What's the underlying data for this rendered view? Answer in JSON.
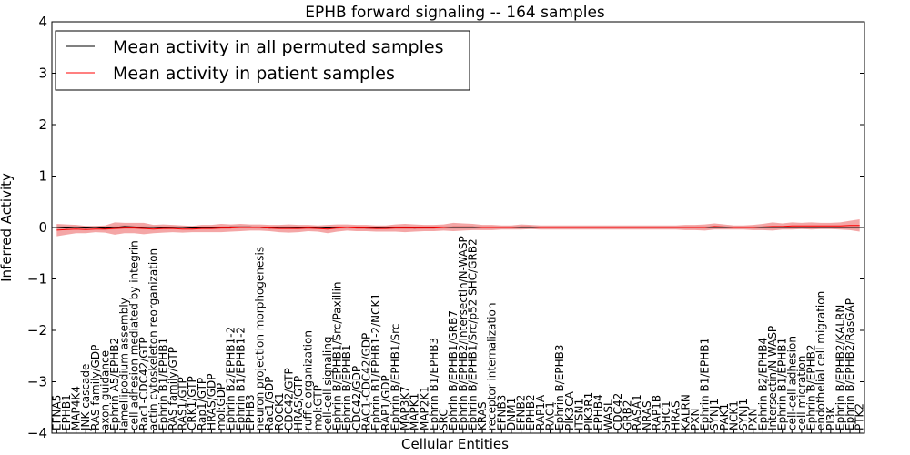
{
  "chart_data": {
    "type": "line",
    "title": "EPHB forward signaling -- 164 samples",
    "xlabel": "Cellular Entities",
    "ylabel": "Inferred Activity",
    "ylim": [
      -4,
      4
    ],
    "yticks": [
      4,
      3,
      2,
      1,
      0,
      -1,
      -2,
      -3,
      -4
    ],
    "ytick_labels": [
      "4",
      "3",
      "2",
      "1",
      "0",
      "−1",
      "−2",
      "−3",
      "−4"
    ],
    "grid": false,
    "legend_position": "top-left",
    "categories": [
      "EFNA5",
      "EPHB1",
      "MAP4K4",
      "JNK cascade",
      "RAS family/GDP",
      "axon guidance",
      "Ephrin A5/EPHB2",
      "lamellipodium assembly",
      "cell adhesion mediated by integrin",
      "Rac1-CDC42/GTP",
      "actin cytoskeleton reorganization",
      "Ephrin B1/EPHB1",
      "RAS family/GTP",
      "RAS1/GTP",
      "CRK1/GTP",
      "Rap1/GTP",
      "HRAS/GDP",
      "mol:GDP",
      "Ephrin B2/EPHB1-2",
      "Ephrin B1/EPHB1-2",
      "EPHB3",
      "neuron projection morphogenesis",
      "Rac1/GDP",
      "ROCK1",
      "CDC42/GTP",
      "HRAS/GTP",
      "ruffle organization",
      "mol:GTP",
      "cell-cell signaling",
      "Ephrin B/EPHB1/Src/Paxillin",
      "Ephrin B/EPHB1",
      "CDC42/GDP",
      "RAC1-CDC42/GDP",
      "Ephrin B1/EPHB1-2/NCK1",
      "RAP1/GDP",
      "Ephrin B/EPHB1/Src",
      "MAP3K7",
      "MAPK1",
      "MAP2K1",
      "Ephrin B1/EPHB3",
      "SRC",
      "Ephrin B/EPHB1/GRB7",
      "Ephrin B/EPHB2/Intersectin/N-WASP",
      "Ephrin B/EPHB1/Src/p52 SHC/GRB2",
      "KRAS",
      "receptor internalization",
      "EFNB3",
      "DNM1",
      "EFNB2",
      "EPHB2",
      "RAP1A",
      "RAC1",
      "Ephrin B/EPHB3",
      "PIK3CA",
      "ITSN1",
      "PIK3R1",
      "EPHB4",
      "WASL",
      "CDC42",
      "GRB2",
      "RASA1",
      "NRAS",
      "RAP1B",
      "SHC1",
      "HRAS",
      "KALRN",
      "PXN",
      "Ephrin B1/EPHB1",
      "SYNJ1",
      "PAK1",
      "NCK1",
      "SYNJ1",
      "PXN",
      "Ephrin B2/EPHB4",
      "Intersectin/N-WASP",
      "Ephrin B1/EPHB1",
      "cell-cell adhesion",
      "cell migration",
      "Ephrin B/EPHB2",
      "endothelial cell migration",
      "PI3K",
      "Ephrin B/EPHB2/KALRN",
      "Ephrin B/EPHB2/RasGAP",
      "PTK2"
    ],
    "series": [
      {
        "name": "Mean activity in all permuted samples",
        "color": "#000000",
        "values": [
          0.0,
          -0.01,
          0.0,
          -0.01,
          0.0,
          -0.02,
          0.0,
          0.02,
          0.01,
          0.0,
          0.0,
          -0.01,
          0.0,
          0.0,
          -0.01,
          -0.01,
          -0.01,
          0.0,
          0.01,
          0.01,
          0.01,
          0.0,
          -0.01,
          0.0,
          0.0,
          -0.01,
          0.0,
          0.0,
          -0.01,
          0.0,
          0.0,
          0.0,
          -0.01,
          -0.01,
          0.0,
          0.0,
          0.0,
          -0.01,
          0.0,
          0.0,
          0.0,
          0.0,
          0.0,
          0.0,
          0.0,
          0.0,
          0.0,
          0.0,
          0.0,
          0.0,
          0.0,
          0.0,
          0.0,
          0.0,
          0.0,
          0.0,
          0.0,
          0.0,
          0.0,
          0.0,
          0.0,
          0.0,
          0.0,
          0.0,
          0.0,
          0.0,
          0.0,
          0.0,
          0.0,
          0.0,
          0.0,
          0.0,
          0.0,
          0.0,
          0.0,
          0.0,
          0.0,
          0.0,
          0.0,
          0.0,
          0.0,
          0.0,
          0.0,
          0.0
        ],
        "band": [
          0.05,
          0.04,
          0.04,
          0.03,
          0.03,
          0.04,
          0.04,
          0.03,
          0.03,
          0.04,
          0.04,
          0.03,
          0.03,
          0.03,
          0.03,
          0.03,
          0.03,
          0.03,
          0.03,
          0.03,
          0.03,
          0.03,
          0.03,
          0.03,
          0.03,
          0.03,
          0.03,
          0.03,
          0.03,
          0.03,
          0.03,
          0.03,
          0.03,
          0.03,
          0.03,
          0.03,
          0.03,
          0.03,
          0.03,
          0.03,
          0.03,
          0.03,
          0.03,
          0.03,
          0.03,
          0.03,
          0.03,
          0.03,
          0.03,
          0.03,
          0.03,
          0.03,
          0.03,
          0.03,
          0.03,
          0.03,
          0.03,
          0.03,
          0.03,
          0.03,
          0.03,
          0.03,
          0.03,
          0.03,
          0.03,
          0.03,
          0.03,
          0.03,
          0.03,
          0.03,
          0.03,
          0.03,
          0.03,
          0.03,
          0.03,
          0.03,
          0.03,
          0.03,
          0.03,
          0.03,
          0.03,
          0.03,
          0.03,
          0.04
        ]
      },
      {
        "name": "Mean activity in patient samples",
        "color": "#ff0000",
        "values": [
          -0.05,
          -0.04,
          -0.03,
          -0.04,
          -0.03,
          -0.03,
          -0.02,
          -0.01,
          -0.01,
          -0.02,
          -0.03,
          -0.02,
          -0.02,
          -0.03,
          -0.03,
          -0.02,
          -0.02,
          -0.01,
          -0.01,
          0.0,
          0.0,
          0.0,
          -0.01,
          -0.02,
          -0.02,
          -0.02,
          -0.01,
          -0.02,
          -0.03,
          -0.01,
          0.0,
          -0.01,
          -0.01,
          -0.02,
          -0.02,
          -0.01,
          -0.01,
          -0.01,
          -0.01,
          -0.01,
          0.0,
          0.01,
          0.01,
          0.01,
          0.0,
          0.0,
          0.0,
          0.0,
          0.01,
          0.01,
          0.0,
          0.0,
          0.0,
          0.0,
          0.0,
          0.0,
          0.0,
          0.0,
          0.0,
          0.0,
          0.0,
          0.0,
          0.0,
          0.0,
          0.0,
          0.0,
          0.0,
          0.0,
          0.02,
          0.01,
          0.0,
          0.0,
          0.0,
          0.01,
          0.02,
          0.02,
          0.03,
          0.03,
          0.03,
          0.03,
          0.03,
          0.03,
          0.04,
          0.04
        ],
        "band": [
          0.12,
          0.1,
          0.08,
          0.07,
          0.06,
          0.07,
          0.12,
          0.1,
          0.1,
          0.11,
          0.08,
          0.08,
          0.07,
          0.07,
          0.06,
          0.07,
          0.07,
          0.08,
          0.07,
          0.07,
          0.06,
          0.06,
          0.06,
          0.07,
          0.08,
          0.07,
          0.06,
          0.06,
          0.08,
          0.07,
          0.06,
          0.06,
          0.06,
          0.06,
          0.06,
          0.07,
          0.08,
          0.07,
          0.06,
          0.06,
          0.06,
          0.08,
          0.07,
          0.06,
          0.05,
          0.05,
          0.04,
          0.04,
          0.05,
          0.04,
          0.04,
          0.04,
          0.04,
          0.04,
          0.04,
          0.04,
          0.04,
          0.04,
          0.04,
          0.04,
          0.04,
          0.04,
          0.04,
          0.04,
          0.04,
          0.05,
          0.05,
          0.06,
          0.06,
          0.05,
          0.04,
          0.04,
          0.05,
          0.06,
          0.08,
          0.06,
          0.07,
          0.06,
          0.07,
          0.06,
          0.06,
          0.07,
          0.09,
          0.12
        ]
      }
    ]
  }
}
